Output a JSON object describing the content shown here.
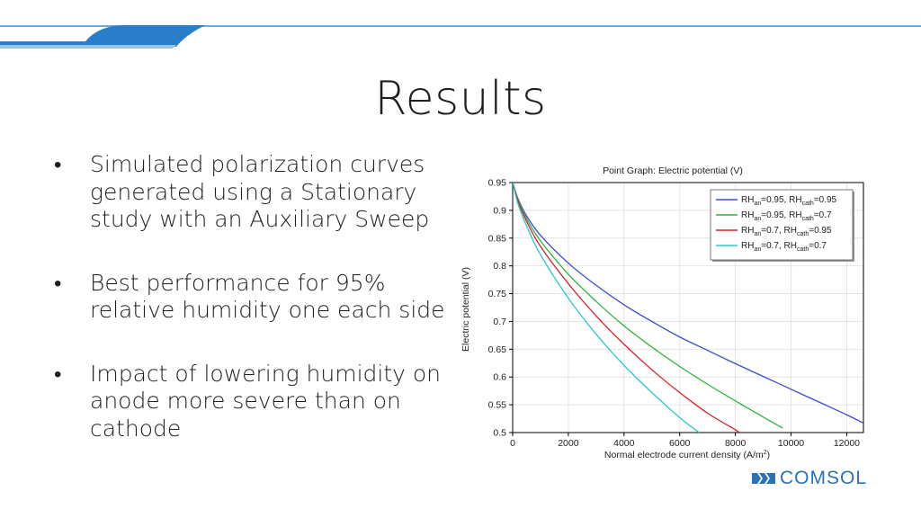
{
  "slide": {
    "title": "Results",
    "bullets": [
      "Simulated polarization curves generated using a Stationary study with an Auxiliary Sweep",
      "Best performance for 95% relative humidity one each side",
      "Impact of lowering humidity on anode more severe than on cathode"
    ],
    "logo_text": "COMSOL",
    "colors": {
      "accent": "#2a7dc8",
      "brand": "#2a73b8"
    }
  },
  "chart_data": {
    "type": "line",
    "title": "Point Graph: Electric potential (V)",
    "xlabel": "Normal electrode current density (A/m",
    "xlabel_sup": "2",
    "xlabel_tail": ")",
    "ylabel": "Electric potential (V)",
    "xlim": [
      0,
      12600
    ],
    "ylim": [
      0.5,
      0.95
    ],
    "xticks": [
      0,
      2000,
      4000,
      6000,
      8000,
      10000,
      12000
    ],
    "yticks": [
      0.5,
      0.55,
      0.6,
      0.65,
      0.7,
      0.75,
      0.8,
      0.85,
      0.9,
      0.95
    ],
    "ytick_labels": [
      "0.5",
      "0.55",
      "0.6",
      "0.65",
      "0.7",
      "0.75",
      "0.8",
      "0.85",
      "0.9",
      "0.95"
    ],
    "grid": true,
    "legend_position": "top-right",
    "series": [
      {
        "name": "RHan=0.95, RHcath=0.95",
        "legend": {
          "a": "RH",
          "a_sub": "an",
          "b": "=0.95, RH",
          "b_sub": "cath",
          "c": "=0.95"
        },
        "color": "#3a4bd0",
        "points": [
          [
            0,
            0.95
          ],
          [
            200,
            0.92
          ],
          [
            500,
            0.89
          ],
          [
            1000,
            0.855
          ],
          [
            2000,
            0.805
          ],
          [
            3000,
            0.765
          ],
          [
            4000,
            0.73
          ],
          [
            5000,
            0.7
          ],
          [
            6000,
            0.672
          ],
          [
            7000,
            0.648
          ],
          [
            8000,
            0.624
          ],
          [
            9000,
            0.601
          ],
          [
            10000,
            0.578
          ],
          [
            11000,
            0.555
          ],
          [
            12000,
            0.532
          ],
          [
            12600,
            0.517
          ]
        ]
      },
      {
        "name": "RHan=0.95, RHcath=0.7",
        "legend": {
          "a": "RH",
          "a_sub": "an",
          "b": "=0.95, RH",
          "b_sub": "cath",
          "c": "=0.7"
        },
        "color": "#2fb33c",
        "points": [
          [
            0,
            0.95
          ],
          [
            200,
            0.918
          ],
          [
            500,
            0.885
          ],
          [
            1000,
            0.845
          ],
          [
            2000,
            0.785
          ],
          [
            3000,
            0.736
          ],
          [
            4000,
            0.692
          ],
          [
            5000,
            0.654
          ],
          [
            6000,
            0.619
          ],
          [
            7000,
            0.587
          ],
          [
            8000,
            0.557
          ],
          [
            9000,
            0.528
          ],
          [
            9700,
            0.508
          ]
        ]
      },
      {
        "name": "RHan=0.7, RHcath=0.95",
        "legend": {
          "a": "RH",
          "a_sub": "an",
          "b": "=0.7, RH",
          "b_sub": "cath",
          "c": "=0.95"
        },
        "color": "#d8202a",
        "points": [
          [
            0,
            0.95
          ],
          [
            200,
            0.915
          ],
          [
            500,
            0.88
          ],
          [
            1000,
            0.835
          ],
          [
            2000,
            0.768
          ],
          [
            3000,
            0.71
          ],
          [
            4000,
            0.659
          ],
          [
            5000,
            0.613
          ],
          [
            6000,
            0.572
          ],
          [
            7000,
            0.535
          ],
          [
            8000,
            0.505
          ],
          [
            8150,
            0.5
          ]
        ]
      },
      {
        "name": "RHan=0.7, RHcath=0.7",
        "legend": {
          "a": "RH",
          "a_sub": "an",
          "b": "=0.7, RH",
          "b_sub": "cath",
          "c": "=0.7"
        },
        "color": "#28c8d0",
        "points": [
          [
            0,
            0.95
          ],
          [
            200,
            0.91
          ],
          [
            500,
            0.872
          ],
          [
            1000,
            0.82
          ],
          [
            2000,
            0.742
          ],
          [
            3000,
            0.677
          ],
          [
            4000,
            0.621
          ],
          [
            5000,
            0.572
          ],
          [
            6000,
            0.527
          ],
          [
            6700,
            0.5
          ]
        ]
      }
    ]
  }
}
